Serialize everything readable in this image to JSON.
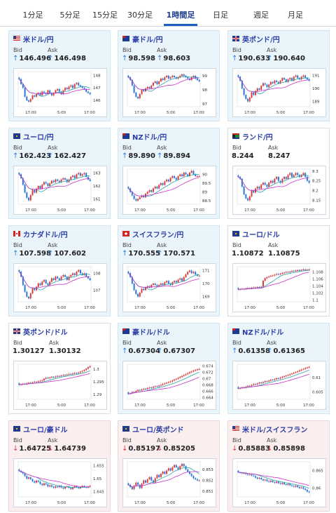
{
  "tabs": [
    "1分足",
    "5分足",
    "15分足",
    "30分足",
    "1時間足",
    "日足",
    "週足",
    "月足"
  ],
  "active_tab": 4,
  "labels": {
    "bid": "Bid",
    "ask": "Ask"
  },
  "time_labels": [
    "17:00",
    "5:00",
    "17:00"
  ],
  "colors": {
    "up": "#2a78d6",
    "down": "#d83b3b",
    "ma1": "#cc33cc",
    "ma2": "#2aa0aa"
  },
  "cards": [
    {
      "name": "米ドル/円",
      "flag": "us-flag-icon",
      "bid": "146.496",
      "ask": "146.498",
      "dir": "up",
      "tone": "blue",
      "chart_data": {
        "type": "candlestick",
        "y_ticks": [
          "148",
          "147",
          "146"
        ],
        "ylim": [
          145.5,
          148.3
        ],
        "close": [
          147.7,
          147.3,
          147.0,
          146.3,
          146.0,
          145.9,
          146.1,
          146.4,
          146.3,
          146.5,
          146.6,
          146.4,
          146.7,
          146.6,
          146.5,
          146.8,
          146.6,
          146.4,
          146.6,
          146.8,
          146.9,
          146.7,
          146.5,
          146.8,
          147.0,
          146.9,
          147.1,
          147.2,
          147.0,
          147.3,
          147.4,
          147.2,
          147.1,
          147.0,
          146.9,
          146.7,
          146.6,
          146.5
        ]
      }
    },
    {
      "name": "豪ドル/円",
      "flag": "au-flag-icon",
      "bid": "98.598",
      "ask": "98.603",
      "dir": "up",
      "tone": "blue",
      "chart_data": {
        "type": "candlestick",
        "y_ticks": [
          "99",
          "98",
          "97"
        ],
        "ylim": [
          96.8,
          99.3
        ],
        "close": [
          98.9,
          98.7,
          98.3,
          97.8,
          97.5,
          97.4,
          97.7,
          98.0,
          97.9,
          98.1,
          98.2,
          98.1,
          98.3,
          98.5,
          98.6,
          98.4,
          98.6,
          98.8,
          98.7,
          98.9,
          99.0,
          98.8,
          98.9,
          99.0,
          98.9,
          98.8,
          98.9,
          99.0,
          99.1,
          99.0,
          98.9,
          98.8,
          98.7,
          98.9,
          99.0,
          98.8,
          98.7,
          98.6
        ]
      }
    },
    {
      "name": "英ポンド/円",
      "flag": "gb-flag-icon",
      "bid": "190.633",
      "ask": "190.640",
      "dir": "up",
      "tone": "blue",
      "chart_data": {
        "type": "candlestick",
        "y_ticks": [
          "191",
          "190",
          "189"
        ],
        "ylim": [
          188.6,
          191.3
        ],
        "close": [
          190.9,
          190.6,
          190.0,
          189.5,
          189.2,
          189.0,
          189.3,
          189.7,
          189.5,
          189.8,
          190.0,
          189.9,
          190.2,
          190.4,
          190.3,
          190.1,
          190.3,
          190.5,
          190.4,
          190.6,
          190.5,
          190.4,
          190.6,
          190.8,
          190.7,
          190.5,
          190.7,
          190.8,
          190.6,
          190.9,
          191.0,
          190.8,
          190.7,
          190.9,
          191.0,
          190.8,
          190.7,
          190.6
        ]
      }
    },
    {
      "name": "ユーロ/円",
      "flag": "eu-flag-icon",
      "bid": "162.423",
      "ask": "162.427",
      "dir": "up",
      "tone": "blue",
      "chart_data": {
        "type": "candlestick",
        "y_ticks": [
          "163",
          "162",
          "161"
        ],
        "ylim": [
          160.6,
          163.3
        ],
        "close": [
          162.9,
          162.6,
          162.1,
          161.5,
          161.1,
          160.9,
          161.3,
          161.7,
          161.5,
          161.8,
          162.0,
          161.8,
          162.1,
          162.3,
          162.2,
          162.0,
          162.2,
          162.4,
          162.3,
          162.5,
          162.4,
          162.3,
          162.5,
          162.6,
          162.5,
          162.3,
          162.5,
          162.7,
          162.8,
          162.6,
          162.9,
          163.0,
          162.8,
          162.9,
          163.0,
          162.7,
          162.5,
          162.4
        ]
      }
    },
    {
      "name": "NZドル/円",
      "flag": "nz-flag-icon",
      "bid": "89.890",
      "ask": "89.894",
      "dir": "up",
      "tone": "blue",
      "chart_data": {
        "type": "candlestick",
        "y_ticks": [
          "90",
          "89.5",
          "89",
          "88.5"
        ],
        "ylim": [
          88.3,
          90.3
        ],
        "close": [
          89.2,
          89.0,
          88.8,
          88.6,
          88.5,
          88.6,
          88.7,
          88.8,
          88.7,
          88.9,
          89.0,
          89.1,
          89.0,
          89.2,
          89.3,
          89.2,
          89.4,
          89.5,
          89.4,
          89.6,
          89.7,
          89.6,
          89.8,
          89.9,
          89.8,
          89.7,
          89.9,
          90.0,
          89.9,
          90.1,
          90.0,
          89.9,
          90.1,
          90.2,
          90.0,
          89.9,
          89.9,
          89.9
        ]
      }
    },
    {
      "name": "ランド/円",
      "flag": "za-flag-icon",
      "bid": "8.244",
      "ask": "8.247",
      "dir": "none",
      "tone": "flat",
      "chart_data": {
        "type": "candlestick",
        "y_ticks": [
          "8.3",
          "8.25",
          "8.2",
          "8.15"
        ],
        "ylim": [
          8.13,
          8.31
        ],
        "close": [
          8.27,
          8.26,
          8.22,
          8.18,
          8.16,
          8.15,
          8.17,
          8.2,
          8.19,
          8.21,
          8.22,
          8.21,
          8.23,
          8.24,
          8.23,
          8.22,
          8.24,
          8.25,
          8.24,
          8.26,
          8.27,
          8.25,
          8.24,
          8.26,
          8.27,
          8.26,
          8.28,
          8.29,
          8.27,
          8.28,
          8.29,
          8.28,
          8.27,
          8.28,
          8.29,
          8.27,
          8.25,
          8.24
        ]
      }
    },
    {
      "name": "カナダドル/円",
      "flag": "ca-flag-icon",
      "bid": "107.598",
      "ask": "107.602",
      "dir": "up",
      "tone": "blue",
      "chart_data": {
        "type": "candlestick",
        "y_ticks": [
          "108",
          "107"
        ],
        "ylim": [
          106.3,
          108.4
        ],
        "close": [
          108.1,
          107.8,
          107.3,
          106.9,
          106.6,
          106.5,
          106.8,
          107.1,
          107.0,
          107.2,
          107.4,
          107.3,
          107.5,
          107.6,
          107.4,
          107.3,
          107.5,
          107.7,
          107.6,
          107.8,
          107.7,
          107.6,
          107.8,
          107.9,
          107.8,
          107.6,
          107.8,
          107.9,
          108.0,
          107.9,
          108.1,
          108.2,
          108.0,
          107.9,
          108.0,
          107.8,
          107.7,
          107.6
        ]
      }
    },
    {
      "name": "スイスフラン/円",
      "flag": "ch-flag-icon",
      "bid": "170.555",
      "ask": "170.571",
      "dir": "up",
      "tone": "blue",
      "chart_data": {
        "type": "candlestick",
        "y_ticks": [
          "171",
          "170",
          "169"
        ],
        "ylim": [
          168.6,
          171.3
        ],
        "close": [
          170.8,
          170.5,
          170.0,
          169.5,
          169.2,
          169.0,
          169.3,
          169.6,
          169.5,
          169.7,
          169.8,
          169.7,
          169.9,
          170.0,
          169.9,
          169.8,
          169.9,
          170.0,
          169.9,
          170.1,
          170.2,
          170.0,
          169.9,
          170.1,
          170.2,
          170.1,
          170.3,
          170.4,
          170.2,
          170.5,
          170.7,
          170.9,
          171.0,
          170.8,
          170.9,
          170.7,
          170.6,
          170.6
        ]
      }
    },
    {
      "name": "ユーロ/ドル",
      "flag": "eu-us-flag-icon",
      "bid": "1.10872",
      "ask": "1.10875",
      "dir": "none",
      "tone": "flat",
      "chart_data": {
        "type": "candlestick",
        "y_ticks": [
          "1.108",
          "1.106",
          "1.104",
          "1.102",
          "1.1"
        ],
        "ylim": [
          1.0995,
          1.1095
        ],
        "close": [
          1.103,
          1.1031,
          1.1032,
          1.1031,
          1.1033,
          1.1034,
          1.1033,
          1.1035,
          1.1036,
          1.1035,
          1.1037,
          1.1036,
          1.1038,
          1.1055,
          1.1062,
          1.1065,
          1.1067,
          1.1069,
          1.107,
          1.1072,
          1.1074,
          1.1073,
          1.1075,
          1.1077,
          1.1078,
          1.108,
          1.1079,
          1.1081,
          1.1083,
          1.1082,
          1.1084,
          1.1085,
          1.1084,
          1.1086,
          1.1087,
          1.1085,
          1.1086,
          1.1087
        ]
      }
    },
    {
      "name": "英ポンド/ドル",
      "flag": "gb-us-flag-icon",
      "bid": "1.30127",
      "ask": "1.30132",
      "dir": "none",
      "tone": "flat",
      "chart_data": {
        "type": "candlestick",
        "y_ticks": [
          "1.3",
          "1.295",
          "1.29"
        ],
        "ylim": [
          1.288,
          1.302
        ],
        "close": [
          1.2938,
          1.294,
          1.2942,
          1.2941,
          1.2944,
          1.2946,
          1.2945,
          1.2948,
          1.295,
          1.2949,
          1.2952,
          1.2954,
          1.2956,
          1.2962,
          1.2966,
          1.2964,
          1.2967,
          1.2969,
          1.2968,
          1.2971,
          1.2973,
          1.2972,
          1.2975,
          1.2977,
          1.2976,
          1.2979,
          1.2981,
          1.298,
          1.2983,
          1.2985,
          1.2984,
          1.2987,
          1.299,
          1.2993,
          1.2997,
          1.3002,
          1.3008,
          1.3012
        ]
      }
    },
    {
      "name": "豪ドル/ドル",
      "flag": "au-us-flag-icon",
      "bid": "0.67304",
      "ask": "0.67307",
      "dir": "up",
      "tone": "blue",
      "chart_data": {
        "type": "candlestick",
        "y_ticks": [
          "0.674",
          "0.672",
          "0.67",
          "0.668",
          "0.666",
          "0.664"
        ],
        "ylim": [
          0.6635,
          0.6745
        ],
        "close": [
          0.6652,
          0.6654,
          0.6658,
          0.6657,
          0.6661,
          0.6664,
          0.6663,
          0.6666,
          0.6668,
          0.6667,
          0.667,
          0.6672,
          0.6671,
          0.6674,
          0.6676,
          0.6675,
          0.6678,
          0.668,
          0.6683,
          0.6685,
          0.6687,
          0.6689,
          0.6691,
          0.6694,
          0.6697,
          0.6699,
          0.6702,
          0.6705,
          0.6708,
          0.6711,
          0.6714,
          0.6717,
          0.672,
          0.6722,
          0.6725,
          0.6727,
          0.6729,
          0.673
        ]
      }
    },
    {
      "name": "NZドル/ドル",
      "flag": "nz-us-flag-icon",
      "bid": "0.61358",
      "ask": "0.61365",
      "dir": "up",
      "tone": "blue",
      "chart_data": {
        "type": "candlestick",
        "y_ticks": [
          "0.61",
          "0.605"
        ],
        "ylim": [
          0.6025,
          0.6145
        ],
        "close": [
          0.6062,
          0.6064,
          0.6066,
          0.6065,
          0.6068,
          0.6071,
          0.607,
          0.6074,
          0.6077,
          0.6076,
          0.6079,
          0.6082,
          0.6081,
          0.6084,
          0.6087,
          0.6086,
          0.6089,
          0.6092,
          0.6091,
          0.6094,
          0.6097,
          0.6096,
          0.6099,
          0.6102,
          0.6104,
          0.6106,
          0.6108,
          0.6111,
          0.6113,
          0.6116,
          0.6118,
          0.6121,
          0.6124,
          0.6127,
          0.6129,
          0.6132,
          0.6134,
          0.6136
        ]
      }
    },
    {
      "name": "ユーロ/豪ドル",
      "flag": "eu-au-flag-icon",
      "bid": "1.64725",
      "ask": "1.64739",
      "dir": "down",
      "tone": "red",
      "chart_data": {
        "type": "candlestick",
        "y_ticks": [
          "1.655",
          "1.65",
          "1.645"
        ],
        "ylim": [
          1.643,
          1.6565
        ],
        "close": [
          1.653,
          1.6525,
          1.652,
          1.651,
          1.65,
          1.6505,
          1.6498,
          1.649,
          1.6485,
          1.6492,
          1.6488,
          1.648,
          1.6475,
          1.6482,
          1.6478,
          1.647,
          1.6474,
          1.6469,
          1.6465,
          1.647,
          1.6468,
          1.6472,
          1.6466,
          1.6462,
          1.6468,
          1.647,
          1.6465,
          1.646,
          1.6466,
          1.6471,
          1.6467,
          1.6463,
          1.6468,
          1.6472,
          1.6469,
          1.6466,
          1.647,
          1.6472
        ]
      }
    },
    {
      "name": "ユーロ/英ポンド",
      "flag": "eu-gb-flag-icon",
      "bid": "0.85197",
      "ask": "0.85205",
      "dir": "down",
      "tone": "red",
      "chart_data": {
        "type": "candlestick",
        "y_ticks": [
          "0.853",
          "0.852",
          "0.851"
        ],
        "ylim": [
          0.8505,
          0.8537
        ],
        "close": [
          0.8516,
          0.8514,
          0.8512,
          0.8515,
          0.8518,
          0.8516,
          0.8513,
          0.8517,
          0.852,
          0.8518,
          0.8521,
          0.8523,
          0.852,
          0.8518,
          0.8522,
          0.8525,
          0.8523,
          0.8526,
          0.8528,
          0.8526,
          0.8529,
          0.8531,
          0.8529,
          0.8532,
          0.8534,
          0.8532,
          0.853,
          0.8533,
          0.8535,
          0.8533,
          0.853,
          0.8528,
          0.8526,
          0.8524,
          0.8522,
          0.8521,
          0.852,
          0.852
        ]
      }
    },
    {
      "name": "米ドル/スイスフラン",
      "flag": "us-ch-flag-icon",
      "bid": "0.85883",
      "ask": "0.85898",
      "dir": "down",
      "tone": "red",
      "chart_data": {
        "type": "candlestick",
        "y_ticks": [
          "0.865",
          "0.86"
        ],
        "ylim": [
          0.8575,
          0.8675
        ],
        "close": [
          0.8645,
          0.8644,
          0.8642,
          0.8643,
          0.864,
          0.8638,
          0.8639,
          0.8636,
          0.8634,
          0.863,
          0.8627,
          0.8629,
          0.8625,
          0.8622,
          0.8624,
          0.862,
          0.8618,
          0.8621,
          0.8617,
          0.8615,
          0.8618,
          0.8614,
          0.8612,
          0.8615,
          0.8611,
          0.8609,
          0.8612,
          0.8608,
          0.8606,
          0.8604,
          0.8607,
          0.8603,
          0.86,
          0.8602,
          0.8598,
          0.8595,
          0.859,
          0.8588
        ]
      }
    }
  ]
}
